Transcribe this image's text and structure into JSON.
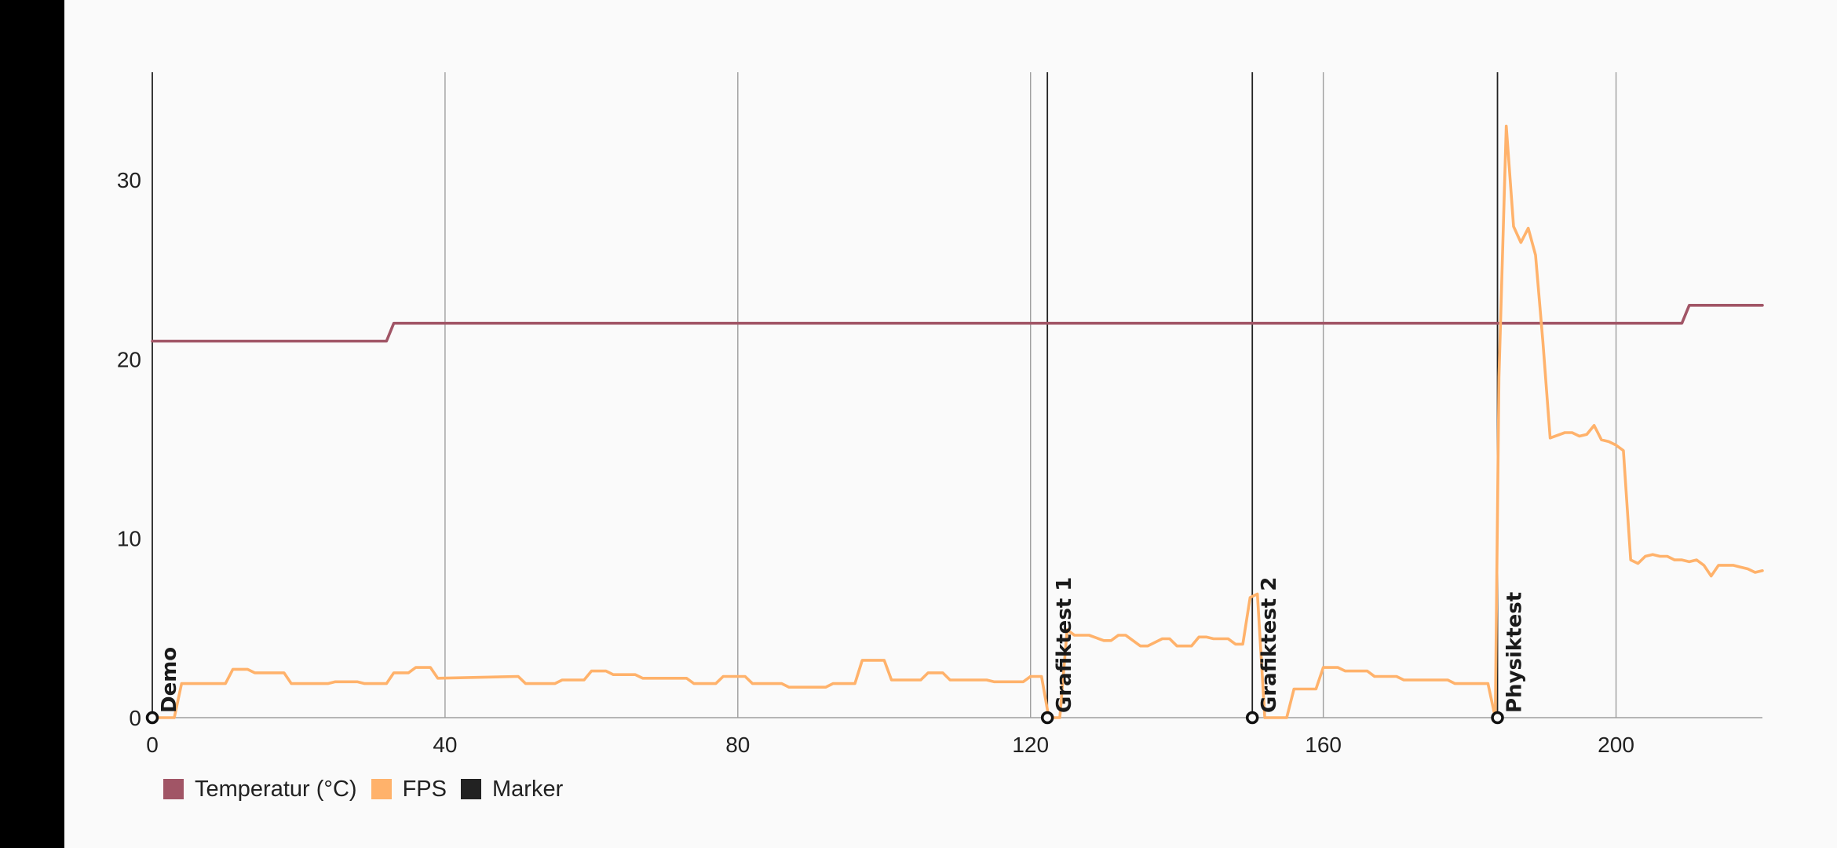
{
  "chart_data": {
    "type": "line",
    "xlim": [
      0,
      220
    ],
    "ylim": [
      0,
      36
    ],
    "x_ticks": [
      0,
      40,
      80,
      120,
      160,
      200
    ],
    "y_ticks": [
      0,
      10,
      20,
      30
    ],
    "x_tick_labels": [
      "0",
      "40",
      "80",
      "120",
      "160",
      "200"
    ],
    "y_tick_labels": [
      "0",
      "10",
      "20",
      "30"
    ],
    "grid": "vertical",
    "legend_position": "bottom-left",
    "legend": [
      {
        "label": "Temperatur (°C)",
        "color": "#a15566"
      },
      {
        "label": "FPS",
        "color": "#ffb26b"
      },
      {
        "label": "Marker",
        "color": "#222222"
      }
    ],
    "series": [
      {
        "name": "Temperatur (°C)",
        "color": "#a15566",
        "x": [
          0,
          32,
          33,
          209,
          210,
          220
        ],
        "y": [
          21,
          21,
          22,
          22,
          23,
          23
        ]
      },
      {
        "name": "FPS",
        "color": "#ffb26b",
        "x": [
          0,
          3,
          4,
          10,
          11,
          13,
          14,
          18,
          19,
          24,
          25,
          28,
          29,
          32,
          33,
          35,
          36,
          38,
          39,
          50,
          51,
          55,
          56,
          59,
          60,
          62,
          63,
          66,
          67,
          73,
          74,
          77,
          78,
          81,
          82,
          86,
          87,
          92,
          93,
          96,
          97,
          100,
          101,
          105,
          106,
          108,
          109,
          114,
          115,
          119,
          120,
          121.5,
          122.5,
          124,
          125,
          126,
          128,
          130,
          131,
          132,
          133,
          135,
          136,
          138,
          139,
          140,
          142,
          143,
          144,
          145,
          147,
          148,
          149,
          150,
          151,
          152,
          154,
          155,
          156,
          159,
          160,
          162,
          163,
          166,
          167,
          170,
          171,
          177,
          178,
          182.5,
          183.5,
          184,
          185,
          186,
          187,
          188,
          189,
          190,
          191,
          193,
          194,
          195,
          196,
          197,
          198,
          199,
          200,
          201,
          202,
          203,
          204,
          205,
          206,
          207,
          208,
          209,
          210,
          211,
          212,
          213,
          214,
          215,
          216,
          217,
          218,
          219,
          220
        ],
        "y": [
          0,
          0,
          1.9,
          1.9,
          2.7,
          2.7,
          2.5,
          2.5,
          1.9,
          1.9,
          2.0,
          2.0,
          1.9,
          1.9,
          2.5,
          2.5,
          2.8,
          2.8,
          2.2,
          2.3,
          1.9,
          1.9,
          2.1,
          2.1,
          2.6,
          2.6,
          2.4,
          2.4,
          2.2,
          2.2,
          1.9,
          1.9,
          2.3,
          2.3,
          1.9,
          1.9,
          1.7,
          1.7,
          1.9,
          1.9,
          3.2,
          3.2,
          2.1,
          2.1,
          2.5,
          2.5,
          2.1,
          2.1,
          2.0,
          2.0,
          2.3,
          2.3,
          0,
          0,
          4.9,
          4.6,
          4.6,
          4.3,
          4.3,
          4.6,
          4.6,
          4.0,
          4.0,
          4.4,
          4.4,
          4.0,
          4.0,
          4.5,
          4.5,
          4.4,
          4.4,
          4.1,
          4.1,
          6.7,
          6.9,
          0,
          0,
          0,
          1.6,
          1.6,
          2.8,
          2.8,
          2.6,
          2.6,
          2.3,
          2.3,
          2.1,
          2.1,
          1.9,
          1.9,
          0,
          19.0,
          33.0,
          27.4,
          26.5,
          27.3,
          25.8,
          21.0,
          15.6,
          15.9,
          15.9,
          15.7,
          15.8,
          16.3,
          15.5,
          15.4,
          15.2,
          14.9,
          8.8,
          8.6,
          9.0,
          9.1,
          9.0,
          9.0,
          8.8,
          8.8,
          8.7,
          8.8,
          8.5,
          7.9,
          8.5,
          8.5,
          8.5,
          8.4,
          8.3,
          8.1,
          8.2
        ]
      }
    ],
    "markers": [
      {
        "x": 0,
        "label": "Demo"
      },
      {
        "x": 122.3,
        "label": "Grafiktest 1"
      },
      {
        "x": 150.3,
        "label": "Grafiktest 2"
      },
      {
        "x": 183.8,
        "label": "Physiktest"
      }
    ]
  },
  "legend_labels": {
    "temperature": "Temperatur (°C)",
    "fps": "FPS",
    "marker": "Marker"
  },
  "colors": {
    "temperature": "#a15566",
    "fps": "#ffb26b",
    "marker": "#222222",
    "grid": "#9e9e9e",
    "background": "#fafafa"
  }
}
